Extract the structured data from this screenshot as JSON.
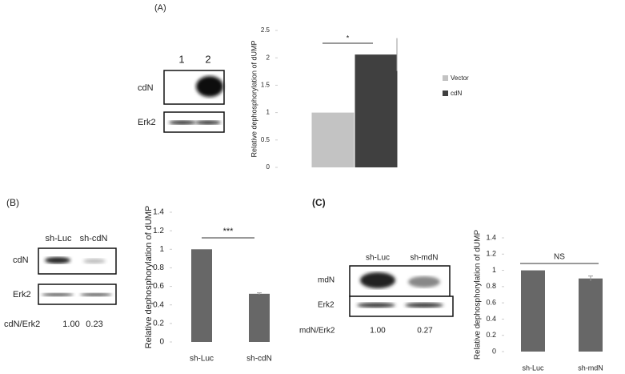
{
  "chart_data": [
    {
      "type": "bar",
      "y_label": "Relative dephosphorylation of dUMP",
      "annotation": "*",
      "series": [
        {
          "name": "Vector",
          "color": "#c3c3c3",
          "values": [
            1.0
          ],
          "errors": [
            0
          ]
        },
        {
          "name": "cdN",
          "color": "#404040",
          "values": [
            2.06
          ],
          "errors": [
            0.3
          ]
        }
      ],
      "ylim": [
        0,
        2.5
      ],
      "yticks": [
        0,
        0.5,
        1,
        1.5,
        2,
        2.5
      ],
      "legend": "right"
    },
    {
      "type": "bar",
      "y_label": "Relative dephosphorylation of dUMP",
      "annotation": "***",
      "categories": [
        "sh-Luc",
        "sh-cdN"
      ],
      "values": [
        1.0,
        0.52
      ],
      "errors": [
        0,
        0.01
      ],
      "color": "#676767",
      "ylim": [
        0,
        1.4
      ],
      "yticks": [
        0,
        0.2,
        0.4,
        0.6,
        0.8,
        1,
        1.2,
        1.4
      ]
    },
    {
      "type": "bar",
      "y_label": "Relative dephosphorylation of dUMP",
      "annotation": "NS",
      "categories": [
        "sh-Luc",
        "sh-mdN"
      ],
      "values": [
        1.0,
        0.9
      ],
      "errors": [
        0,
        0.03
      ],
      "color": "#676767",
      "ylim": [
        0,
        1.4
      ],
      "yticks": [
        0,
        0.2,
        0.4,
        0.6,
        0.8,
        1,
        1.2,
        1.4
      ]
    }
  ],
  "figure": {
    "panel_a": {
      "label": "(A)",
      "lanes": [
        "1",
        "2"
      ],
      "rows": [
        "cdN",
        "Erk2"
      ]
    },
    "panel_b": {
      "label": "(B)",
      "lanes": [
        "sh-Luc",
        "sh-cdN"
      ],
      "rows": [
        "cdN",
        "Erk2"
      ],
      "ratio_label": "cdN/Erk2",
      "ratios": [
        "1.00",
        "0.23"
      ]
    },
    "panel_c": {
      "label": "(C)",
      "lanes": [
        "sh-Luc",
        "sh-mdN"
      ],
      "rows": [
        "mdN",
        "Erk2"
      ],
      "ratio_label": "mdN/Erk2",
      "ratios": [
        "1.00",
        "0.27"
      ]
    }
  }
}
